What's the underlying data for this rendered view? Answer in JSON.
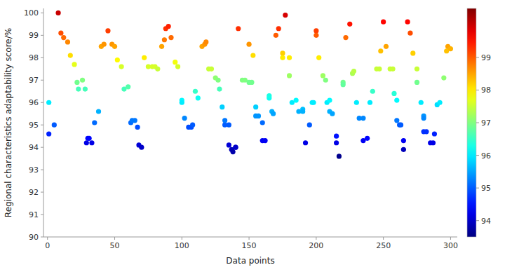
{
  "chart_data": {
    "type": "scatter",
    "xlabel": "Data points",
    "ylabel": "Regional characteristics adaptability score/%",
    "xlim": [
      -3,
      305
    ],
    "ylim": [
      90,
      100.2
    ],
    "xticks": [
      0,
      50,
      100,
      150,
      200,
      250,
      300
    ],
    "yticks": [
      90,
      91,
      92,
      93,
      94,
      95,
      96,
      97,
      98,
      99,
      100
    ],
    "grid": false,
    "color_range": [
      93.5,
      100.5
    ],
    "color_ticks": [
      94,
      95,
      96,
      97,
      98,
      99
    ],
    "x": [
      1,
      1,
      5,
      8,
      10,
      12,
      15,
      17,
      20,
      22,
      23,
      26,
      28,
      29,
      30,
      31,
      33,
      35,
      38,
      40,
      42,
      45,
      48,
      50,
      52,
      55,
      57,
      60,
      62,
      63,
      65,
      67,
      68,
      70,
      72,
      75,
      78,
      80,
      82,
      85,
      87,
      88,
      90,
      92,
      95,
      97,
      100,
      100,
      102,
      105,
      107,
      108,
      110,
      112,
      115,
      117,
      118,
      120,
      122,
      125,
      127,
      128,
      130,
      132,
      132,
      135,
      135,
      137,
      138,
      140,
      140,
      142,
      145,
      147,
      150,
      150,
      152,
      153,
      155,
      155,
      157,
      160,
      160,
      162,
      165,
      165,
      167,
      168,
      170,
      172,
      175,
      175,
      177,
      180,
      180,
      182,
      185,
      187,
      190,
      190,
      192,
      195,
      197,
      198,
      200,
      200,
      202,
      205,
      207,
      208,
      210,
      210,
      212,
      215,
      215,
      217,
      220,
      220,
      222,
      225,
      227,
      228,
      230,
      232,
      235,
      235,
      238,
      240,
      242,
      245,
      247,
      248,
      250,
      252,
      255,
      257,
      258,
      260,
      260,
      262,
      263,
      265,
      265,
      268,
      270,
      272,
      275,
      275,
      278,
      280,
      280,
      280,
      282,
      285,
      287,
      288,
      290,
      292,
      295,
      297,
      298,
      300
    ],
    "values": [
      94.6,
      96.0,
      95.0,
      100.0,
      99.1,
      98.9,
      98.7,
      98.1,
      97.7,
      96.9,
      96.6,
      97.0,
      96.6,
      94.2,
      94.4,
      94.4,
      94.2,
      95.1,
      95.6,
      98.5,
      98.6,
      99.2,
      98.6,
      98.5,
      97.9,
      97.6,
      96.6,
      96.7,
      95.1,
      95.2,
      95.2,
      94.9,
      94.1,
      94.0,
      98.0,
      97.6,
      97.6,
      97.6,
      97.5,
      98.5,
      98.8,
      99.3,
      99.4,
      98.9,
      97.8,
      97.6,
      96.1,
      96.0,
      95.3,
      94.9,
      94.9,
      95.0,
      96.5,
      96.2,
      98.5,
      98.6,
      98.7,
      97.5,
      97.5,
      97.1,
      97.0,
      96.6,
      95.8,
      95.0,
      95.2,
      95.0,
      94.1,
      93.9,
      93.8,
      94.0,
      94.0,
      99.3,
      97.0,
      97.0,
      96.9,
      98.6,
      96.9,
      98.1,
      95.8,
      95.4,
      95.4,
      95.1,
      94.3,
      94.3,
      96.2,
      96.3,
      95.6,
      95.5,
      99.0,
      99.3,
      98.2,
      98.0,
      99.9,
      98.0,
      97.2,
      96.0,
      96.1,
      95.6,
      95.7,
      95.6,
      94.2,
      95.0,
      96.0,
      96.0,
      99.2,
      99.0,
      98.0,
      97.2,
      97.0,
      96.0,
      96.1,
      95.6,
      95.5,
      94.5,
      94.2,
      93.6,
      96.9,
      96.8,
      98.9,
      99.5,
      97.3,
      97.4,
      96.0,
      95.3,
      95.3,
      94.3,
      94.4,
      96.0,
      96.5,
      97.5,
      97.5,
      98.3,
      99.6,
      98.5,
      97.5,
      97.5,
      96.4,
      96.1,
      95.2,
      95.0,
      95.0,
      94.3,
      93.9,
      99.6,
      99.1,
      98.2,
      97.5,
      96.9,
      96.0,
      95.4,
      95.3,
      94.7,
      94.7,
      94.2,
      94.2,
      94.6,
      95.9,
      96.0,
      97.1,
      98.3,
      98.5,
      98.4
    ]
  }
}
